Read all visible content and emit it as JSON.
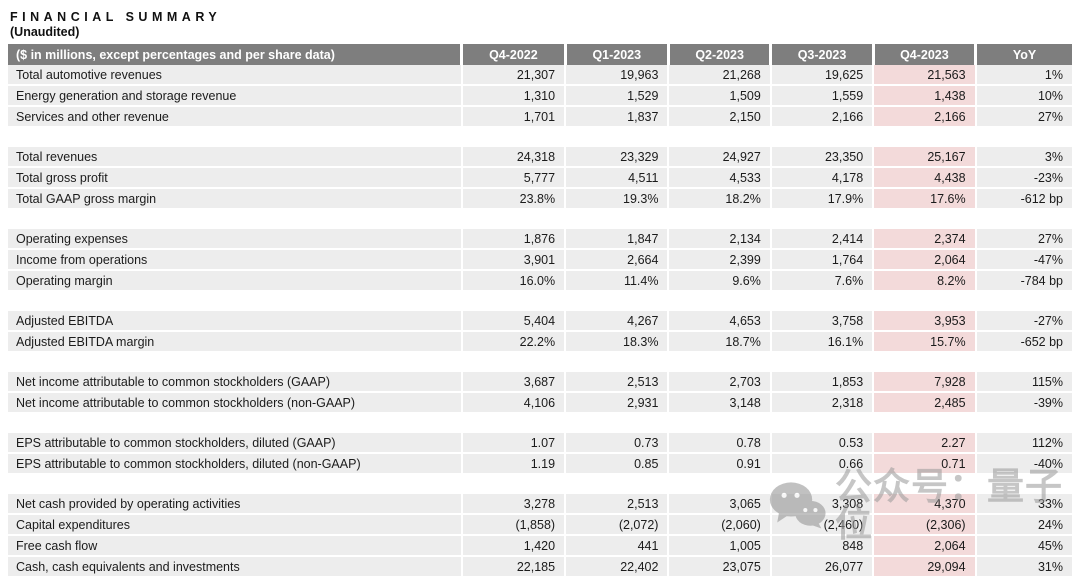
{
  "title": "FINANCIAL SUMMARY",
  "subtitle": "(Unaudited)",
  "colors": {
    "header_bg": "#7e7e7e",
    "header_text": "#ffffff",
    "row_bg": "#ededed",
    "highlight_bg": "#f3dada",
    "text": "#1b1b1b"
  },
  "watermark": {
    "icon": "wechat-icon",
    "text": "公众号：量子位"
  },
  "table": {
    "header": [
      "($ in millions, except percentages and per share data)",
      "Q4-2022",
      "Q1-2023",
      "Q2-2023",
      "Q3-2023",
      "Q4-2023",
      "YoY"
    ],
    "highlight_column": "Q4-2023",
    "highlight_col_index": 5,
    "groups": [
      [
        {
          "label": "Total automotive revenues",
          "values": [
            "21,307",
            "19,963",
            "21,268",
            "19,625",
            "21,563"
          ],
          "yoy": "1%"
        },
        {
          "label": "Energy generation and storage revenue",
          "values": [
            "1,310",
            "1,529",
            "1,509",
            "1,559",
            "1,438"
          ],
          "yoy": "10%"
        },
        {
          "label": "Services and other revenue",
          "values": [
            "1,701",
            "1,837",
            "2,150",
            "2,166",
            "2,166"
          ],
          "yoy": "27%"
        }
      ],
      [
        {
          "label": "Total revenues",
          "values": [
            "24,318",
            "23,329",
            "24,927",
            "23,350",
            "25,167"
          ],
          "yoy": "3%"
        },
        {
          "label": "Total gross profit",
          "values": [
            "5,777",
            "4,511",
            "4,533",
            "4,178",
            "4,438"
          ],
          "yoy": "-23%"
        },
        {
          "label": "Total GAAP gross margin",
          "values": [
            "23.8%",
            "19.3%",
            "18.2%",
            "17.9%",
            "17.6%"
          ],
          "yoy": "-612 bp"
        }
      ],
      [
        {
          "label": "Operating expenses",
          "values": [
            "1,876",
            "1,847",
            "2,134",
            "2,414",
            "2,374"
          ],
          "yoy": "27%"
        },
        {
          "label": "Income from operations",
          "values": [
            "3,901",
            "2,664",
            "2,399",
            "1,764",
            "2,064"
          ],
          "yoy": "-47%"
        },
        {
          "label": "Operating margin",
          "values": [
            "16.0%",
            "11.4%",
            "9.6%",
            "7.6%",
            "8.2%"
          ],
          "yoy": "-784 bp"
        }
      ],
      [
        {
          "label": "Adjusted EBITDA",
          "values": [
            "5,404",
            "4,267",
            "4,653",
            "3,758",
            "3,953"
          ],
          "yoy": "-27%"
        },
        {
          "label": "Adjusted EBITDA margin",
          "values": [
            "22.2%",
            "18.3%",
            "18.7%",
            "16.1%",
            "15.7%"
          ],
          "yoy": "-652 bp"
        }
      ],
      [
        {
          "label": "Net income attributable to common stockholders (GAAP)",
          "values": [
            "3,687",
            "2,513",
            "2,703",
            "1,853",
            "7,928"
          ],
          "yoy": "115%"
        },
        {
          "label": "Net income attributable to common stockholders (non-GAAP)",
          "values": [
            "4,106",
            "2,931",
            "3,148",
            "2,318",
            "2,485"
          ],
          "yoy": "-39%"
        }
      ],
      [
        {
          "label": "EPS attributable to common stockholders, diluted (GAAP)",
          "values": [
            "1.07",
            "0.73",
            "0.78",
            "0.53",
            "2.27"
          ],
          "yoy": "112%"
        },
        {
          "label": "EPS attributable to common stockholders, diluted (non-GAAP)",
          "values": [
            "1.19",
            "0.85",
            "0.91",
            "0.66",
            "0.71"
          ],
          "yoy": "-40%"
        }
      ],
      [
        {
          "label": "Net cash provided by operating activities",
          "values": [
            "3,278",
            "2,513",
            "3,065",
            "3,308",
            "4,370"
          ],
          "yoy": "33%"
        },
        {
          "label": "Capital expenditures",
          "values": [
            "(1,858)",
            "(2,072)",
            "(2,060)",
            "(2,460)",
            "(2,306)"
          ],
          "yoy": "24%"
        },
        {
          "label": "Free cash flow",
          "values": [
            "1,420",
            "441",
            "1,005",
            "848",
            "2,064"
          ],
          "yoy": "45%"
        },
        {
          "label": "Cash, cash equivalents and investments",
          "values": [
            "22,185",
            "22,402",
            "23,075",
            "26,077",
            "29,094"
          ],
          "yoy": "31%"
        }
      ]
    ]
  }
}
